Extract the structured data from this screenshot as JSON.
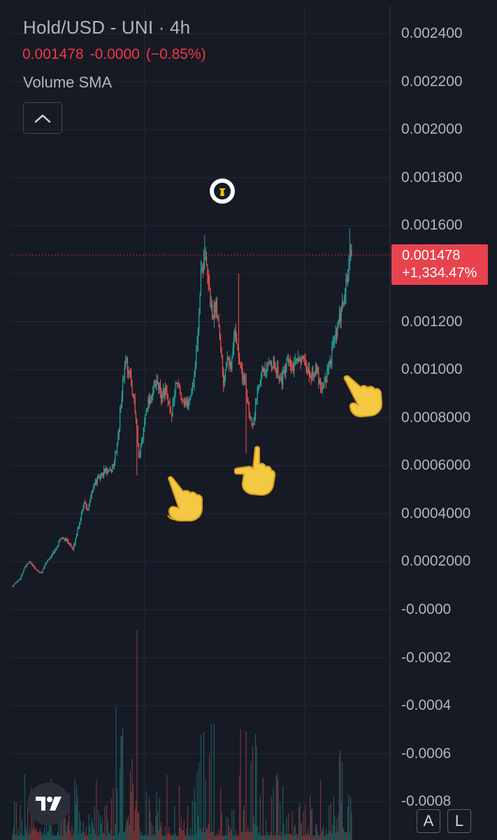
{
  "legend": {
    "title": "Hold/USD - UNI · 4h",
    "price": "0.001478",
    "change": "-0.0000",
    "change_pct": "(−0.85%)",
    "indicator": "Volume SMA"
  },
  "price_tag": {
    "price": "0.001478",
    "change": "+1,334.47%"
  },
  "scale_buttons": {
    "auto": "A",
    "log": "L"
  },
  "colors": {
    "up": "#26a69a",
    "down": "#ef5350",
    "background": "#161a25",
    "tag": "#e8424f"
  },
  "icons": [
    "chevron-up-icon",
    "tradingview-logo-icon",
    "pointing-hand-icon",
    "event-marker-icon"
  ],
  "chart_data": {
    "type": "candlestick",
    "title": "Hold/USD - UNI · 4h",
    "ylim": [
      -0.0008,
      0.0025
    ],
    "y_ticks": [
      "0.002400",
      "0.002200",
      "0.002000",
      "0.001800",
      "0.001600",
      "0.001400",
      "0.001200",
      "0.001000",
      "0.0008000",
      "0.0006000",
      "0.0004000",
      "0.0002000",
      "-0.0000",
      "-0.0002",
      "-0.0004",
      "-0.0006",
      "-0.0008"
    ],
    "last_price": 0.001478,
    "series": [
      {
        "name": "Price",
        "type": "candlestick",
        "close_path": [
          [
            0,
            0.0001
          ],
          [
            8,
            0.00013
          ],
          [
            12,
            0.00017
          ],
          [
            18,
            0.0002
          ],
          [
            24,
            0.00017
          ],
          [
            30,
            0.00015
          ],
          [
            36,
            0.0002
          ],
          [
            44,
            0.00024
          ],
          [
            52,
            0.0003
          ],
          [
            60,
            0.00028
          ],
          [
            64,
            0.00025
          ],
          [
            70,
            0.00035
          ],
          [
            76,
            0.00045
          ],
          [
            80,
            0.00042
          ],
          [
            86,
            0.00052
          ],
          [
            92,
            0.00055
          ],
          [
            98,
            0.00058
          ],
          [
            104,
            0.00057
          ],
          [
            108,
            0.00062
          ],
          [
            112,
            0.00072
          ],
          [
            116,
            0.0009
          ],
          [
            120,
            0.00105
          ],
          [
            124,
            0.00098
          ],
          [
            128,
            0.0009
          ],
          [
            132,
            0.00075
          ],
          [
            134,
            0.00062
          ],
          [
            138,
            0.00072
          ],
          [
            142,
            0.00085
          ],
          [
            148,
            0.0009
          ],
          [
            154,
            0.00095
          ],
          [
            158,
            0.00088
          ],
          [
            162,
            0.00092
          ],
          [
            168,
            0.0008
          ],
          [
            174,
            0.00095
          ],
          [
            180,
            0.00088
          ],
          [
            186,
            0.00085
          ],
          [
            192,
            0.00095
          ],
          [
            196,
            0.0011
          ],
          [
            200,
            0.0014
          ],
          [
            204,
            0.00148
          ],
          [
            208,
            0.00135
          ],
          [
            212,
            0.00122
          ],
          [
            216,
            0.00128
          ],
          [
            220,
            0.00115
          ],
          [
            224,
            0.00095
          ],
          [
            228,
            0.00108
          ],
          [
            232,
            0.001
          ],
          [
            236,
            0.00118
          ],
          [
            240,
            0.00105
          ],
          [
            244,
            0.00098
          ],
          [
            248,
            0.00092
          ],
          [
            252,
            0.0008
          ],
          [
            256,
            0.00078
          ],
          [
            260,
            0.00092
          ],
          [
            264,
            0.001
          ],
          [
            268,
            0.00098
          ],
          [
            274,
            0.00104
          ],
          [
            280,
            0.001
          ],
          [
            286,
            0.00096
          ],
          [
            292,
            0.00103
          ],
          [
            298,
            0.001
          ],
          [
            304,
            0.00106
          ],
          [
            310,
            0.00102
          ],
          [
            316,
            0.00098
          ],
          [
            322,
            0.001
          ],
          [
            328,
            0.00093
          ],
          [
            332,
            0.00096
          ],
          [
            336,
            0.001
          ],
          [
            340,
            0.0011
          ],
          [
            344,
            0.00115
          ],
          [
            348,
            0.00122
          ],
          [
            352,
            0.0013
          ],
          [
            356,
            0.0014
          ],
          [
            358,
            0.00148
          ],
          [
            360,
            0.001478
          ]
        ],
        "notable_highs": [
          [
            204,
            0.00156
          ],
          [
            240,
            0.0014
          ],
          [
            358,
            0.00159
          ]
        ],
        "notable_lows": [
          [
            132,
            0.00056
          ],
          [
            248,
            0.00065
          ],
          [
            330,
            0.00092
          ]
        ]
      },
      {
        "name": "Volume",
        "type": "histogram",
        "relative_heights": "spikes near bars 132, 200, 248"
      }
    ]
  }
}
